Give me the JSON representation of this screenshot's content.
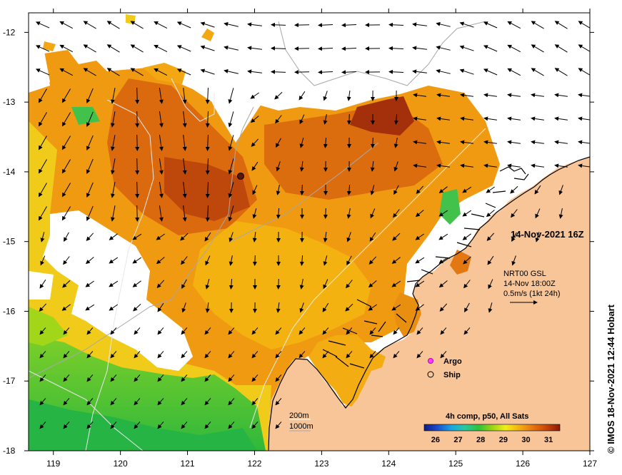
{
  "map": {
    "date_label": "14-Nov-2021 16Z",
    "credit": "© IMOS 18-Nov-2021 12:44 Hobart",
    "x_axis": {
      "ticks": [
        "119",
        "120",
        "121",
        "122",
        "123",
        "124",
        "125",
        "126",
        "127"
      ],
      "range": [
        118.63,
        127
      ]
    },
    "y_axis": {
      "ticks": [
        "-12",
        "-13",
        "-14",
        "-15",
        "-16",
        "-17",
        "-18"
      ],
      "range": [
        -11.72,
        -18
      ]
    },
    "current_info": {
      "source": "NRT00 GSL",
      "time": "14-Nov 18:00Z",
      "scale": "0.5m/s (1kt 24h)"
    },
    "markers": {
      "argo": "Argo",
      "ship": "Ship"
    },
    "contours": {
      "shallow": "200m",
      "deep": "1000m"
    },
    "colorbar": {
      "title": "4h comp, p50, All Sats",
      "ticks": [
        "26",
        "27",
        "28",
        "29",
        "30",
        "31"
      ],
      "range": [
        25.5,
        31.5
      ],
      "colors": [
        "#101a80",
        "#1b4fd0",
        "#18a6e0",
        "#28c8a0",
        "#2cc23c",
        "#9ad418",
        "#f0ee1a",
        "#f3b012",
        "#e67512",
        "#c8450c",
        "#8a1a08"
      ]
    },
    "colors": {
      "land": "#f7c597",
      "coast": "#000000",
      "cloud": "#ffffff"
    }
  }
}
